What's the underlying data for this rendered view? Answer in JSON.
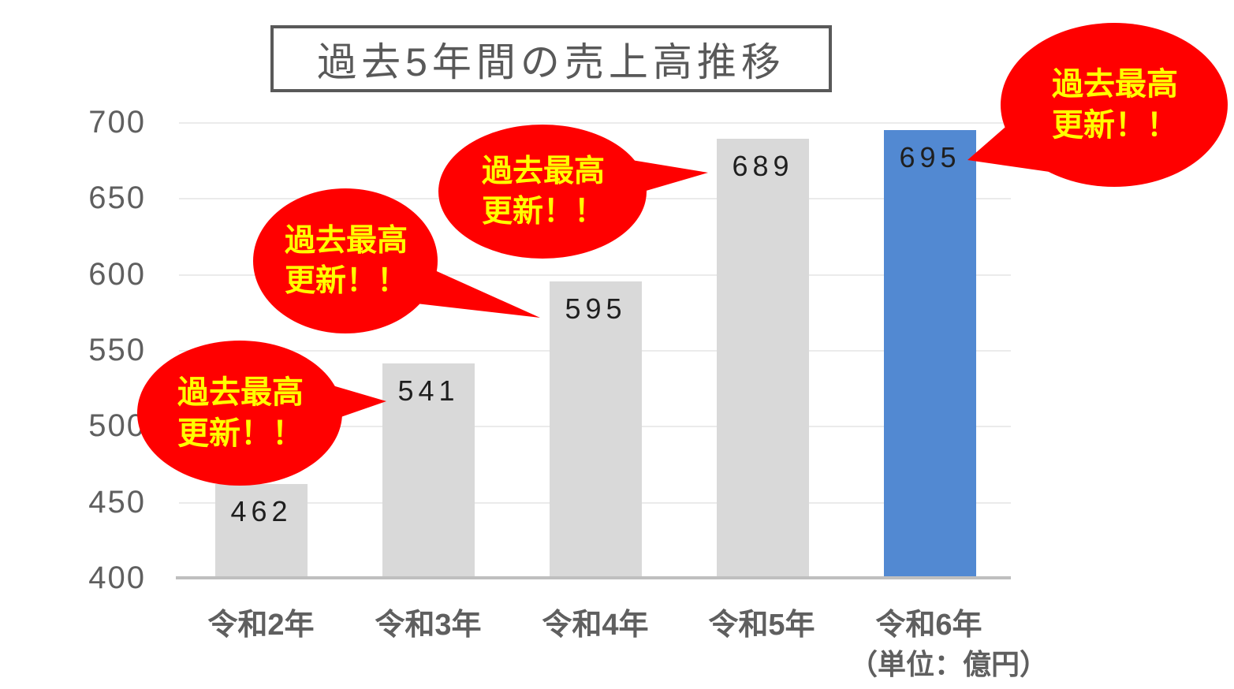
{
  "chart_data": {
    "type": "bar",
    "title": "過去5年間の売上高推移",
    "categories": [
      "令和2年",
      "令和3年",
      "令和4年",
      "令和5年",
      "令和6年"
    ],
    "values": [
      462,
      541,
      595,
      689,
      695
    ],
    "ylim": [
      400,
      700
    ],
    "yticks": [
      700,
      650,
      600,
      550,
      500,
      450,
      400
    ],
    "ytick_step": 50,
    "grid": true,
    "legend": "none",
    "unit_label": "（単位：億円）",
    "highlight_index": 4,
    "bar_default_color": "#D9D9D9",
    "bar_highlight_color": "#5289D2",
    "callouts": [
      {
        "line1": "過去最高",
        "line2": "更新！！",
        "target": "令和3年"
      },
      {
        "line1": "過去最高",
        "line2": "更新！！",
        "target": "令和4年"
      },
      {
        "line1": "過去最高",
        "line2": "更新！！",
        "target": "令和5年"
      },
      {
        "line1": "過去最高",
        "line2": "更新！！",
        "target": "令和6年"
      }
    ],
    "colors": {
      "callout_bg": "#FF0000",
      "callout_text": "#FFFF00",
      "axis_text": "#5F5F5F",
      "value_text": "#1F1F1F",
      "gridline": "#EBEBEB",
      "axis_line": "#BFBFBF",
      "title_text": "#595959"
    }
  }
}
